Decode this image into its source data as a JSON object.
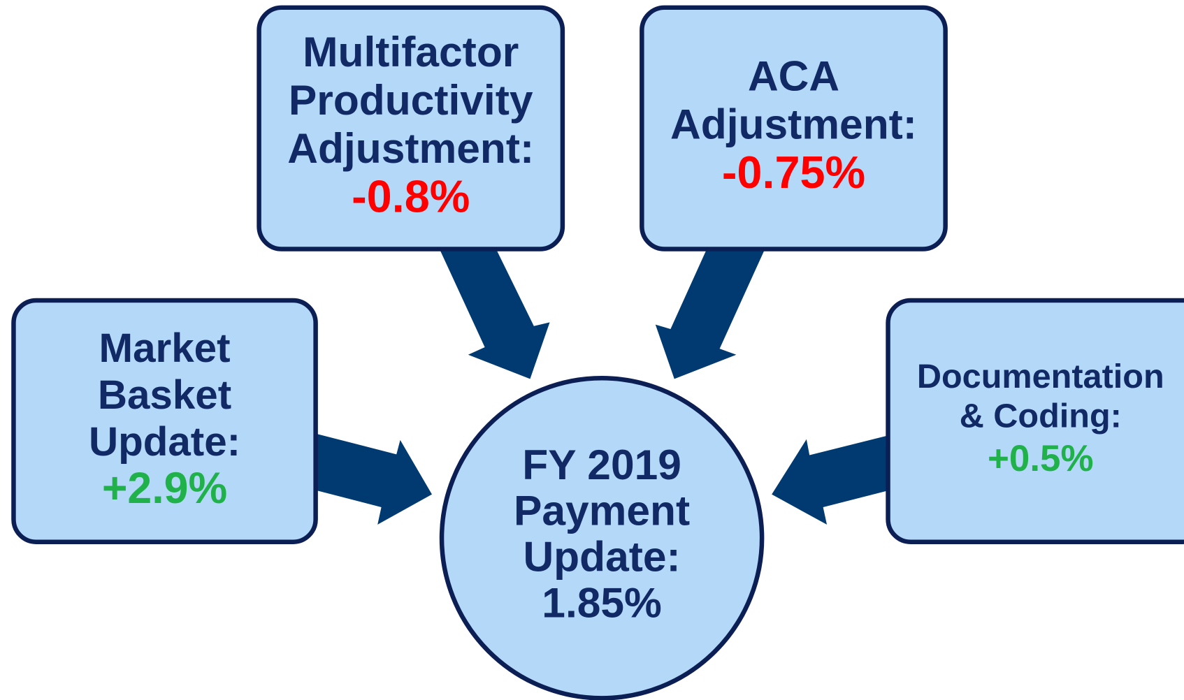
{
  "nodes": [
    {
      "lines": [
        "Market",
        "Basket",
        "Update:"
      ],
      "value": "+2.9%",
      "value_color": "#21b14b"
    },
    {
      "lines": [
        "Multifactor",
        "Productivity",
        "Adjustment:"
      ],
      "value": "-0.8%",
      "value_color": "#ff0000"
    },
    {
      "lines": [
        "ACA",
        "Adjustment:"
      ],
      "value": "-0.75%",
      "value_color": "#ff0000"
    },
    {
      "lines": [
        "Documentation",
        "& Coding:"
      ],
      "value": "+0.5%",
      "value_color": "#21b14b"
    }
  ],
  "result": {
    "lines": [
      "FY 2019",
      "Payment",
      "Update:",
      "1.85%"
    ]
  }
}
